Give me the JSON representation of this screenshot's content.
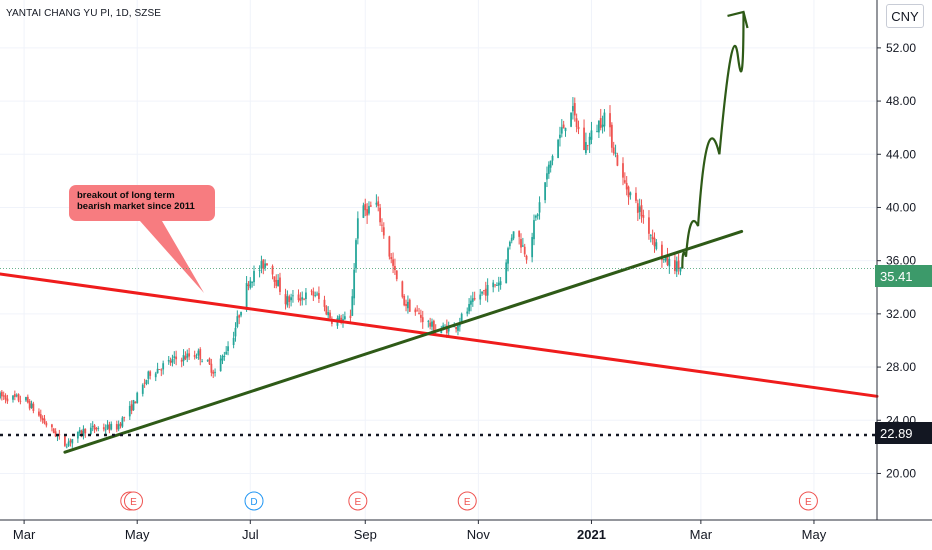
{
  "header": {
    "symbol_title": "YANTAI CHANG YU PI, 1D, SZSE",
    "currency": "CNY"
  },
  "annotation": {
    "line1": "breakout of long term",
    "line2": "bearish market since 2011"
  },
  "price_labels": {
    "last_price": "35.41",
    "support_level": "22.89"
  },
  "colors": {
    "up": "#26a69a",
    "down": "#ef5350",
    "resistance": "#ef1c1c",
    "support": "#2e5a17",
    "callout": "#f77c80",
    "last_tag": "#3c9a6a"
  },
  "chart_data": {
    "type": "candlestick",
    "title": "YANTAI CHANG YU PI, 1D, SZSE",
    "y_ticks": [
      "52.00",
      "48.00",
      "44.00",
      "40.00",
      "36.00",
      "32.00",
      "28.00",
      "24.00",
      "20.00"
    ],
    "y_tick_values": [
      52,
      48,
      44,
      40,
      36,
      32,
      28,
      24,
      20
    ],
    "x_ticks": [
      "Mar",
      "May",
      "Jul",
      "Sep",
      "Nov",
      "2021",
      "Mar",
      "May"
    ],
    "ylim": [
      16.5,
      55.6
    ],
    "x_range": [
      "2020-02-17",
      "2021-06-04"
    ],
    "event_markers": [
      {
        "label": "E",
        "date": "2020-04-27"
      },
      {
        "label": "E",
        "date": "2020-04-29"
      },
      {
        "label": "D",
        "date": "2020-07-03"
      },
      {
        "label": "E",
        "date": "2020-08-28"
      },
      {
        "label": "E",
        "date": "2020-10-26"
      },
      {
        "label": "E",
        "date": "2021-04-28"
      }
    ],
    "trendlines": [
      {
        "name": "resistance",
        "from": {
          "date": "2020-02-17",
          "price": 35.0
        },
        "to": {
          "date": "2021-06-04",
          "price": 25.8
        }
      },
      {
        "name": "support",
        "from": {
          "date": "2020-03-23",
          "price": 21.6
        },
        "to": {
          "date": "2021-03-23",
          "price": 38.2
        }
      }
    ],
    "horizontal_lines": [
      {
        "price": 22.89,
        "style": "dotted"
      }
    ],
    "projection_arrow": [
      {
        "date": "2021-02-19",
        "price": 35.4
      },
      {
        "date": "2021-02-23",
        "price": 37.2
      },
      {
        "date": "2021-03-04",
        "price": 40.0
      },
      {
        "date": "2021-03-18",
        "price": 48.0
      },
      {
        "date": "2021-03-24",
        "price": 54.7
      }
    ],
    "price_path": [
      [
        "2020-02-17",
        25.8
      ],
      [
        "2020-03-02",
        25.5
      ],
      [
        "2020-03-11",
        24.0
      ],
      [
        "2020-03-23",
        22.2
      ],
      [
        "2020-04-03",
        23.3
      ],
      [
        "2020-04-20",
        23.5
      ],
      [
        "2020-04-28",
        25.0
      ],
      [
        "2020-05-08",
        27.6
      ],
      [
        "2020-05-22",
        28.6
      ],
      [
        "2020-06-03",
        29.0
      ],
      [
        "2020-06-12",
        27.6
      ],
      [
        "2020-06-22",
        30.5
      ],
      [
        "2020-06-30",
        34.5
      ],
      [
        "2020-07-10",
        36.0
      ],
      [
        "2020-07-20",
        33.0
      ],
      [
        "2020-08-05",
        33.5
      ],
      [
        "2020-08-14",
        31.6
      ],
      [
        "2020-08-24",
        31.5
      ],
      [
        "2020-08-28",
        39.5
      ],
      [
        "2020-09-07",
        40.2
      ],
      [
        "2020-09-14",
        36.5
      ],
      [
        "2020-09-21",
        33.0
      ],
      [
        "2020-10-09",
        30.8
      ],
      [
        "2020-10-19",
        31.0
      ],
      [
        "2020-11-02",
        33.5
      ],
      [
        "2020-11-13",
        34.5
      ],
      [
        "2020-11-20",
        38.5
      ],
      [
        "2020-11-27",
        36.5
      ],
      [
        "2020-12-11",
        44.0
      ],
      [
        "2020-12-21",
        47.5
      ],
      [
        "2020-12-28",
        44.5
      ],
      [
        "2021-01-08",
        47.0
      ],
      [
        "2021-01-18",
        42.0
      ],
      [
        "2021-01-28",
        39.5
      ],
      [
        "2021-02-09",
        36.0
      ],
      [
        "2021-02-19",
        35.4
      ]
    ]
  }
}
